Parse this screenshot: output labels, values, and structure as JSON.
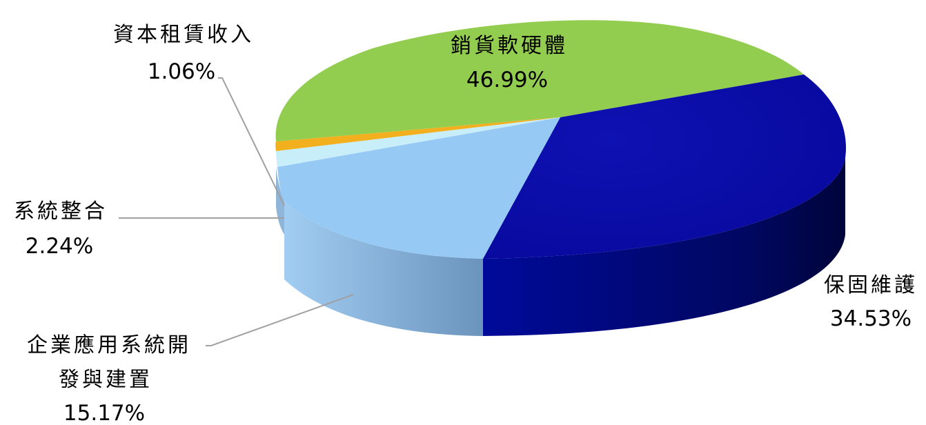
{
  "chart_data": {
    "type": "pie",
    "title": "",
    "slices": [
      {
        "label": "銷貨軟硬體",
        "value": 46.99,
        "value_label": "46.99%",
        "color": "#92cd50"
      },
      {
        "label": "保固維護",
        "value": 34.53,
        "value_label": "34.53%",
        "color": "#0a0aa8"
      },
      {
        "label_lines": [
          "企業應用系統開",
          "發與建置"
        ],
        "label": "企業應用系統開發與建置",
        "value": 15.17,
        "value_label": "15.17%",
        "color": "#97c9f5"
      },
      {
        "label": "系統整合",
        "value": 2.24,
        "value_label": "2.24%",
        "color": "#c8eefa"
      },
      {
        "label": "資本租賃收入",
        "value": 1.06,
        "value_label": "1.06%",
        "color": "#f2b01e"
      }
    ]
  }
}
